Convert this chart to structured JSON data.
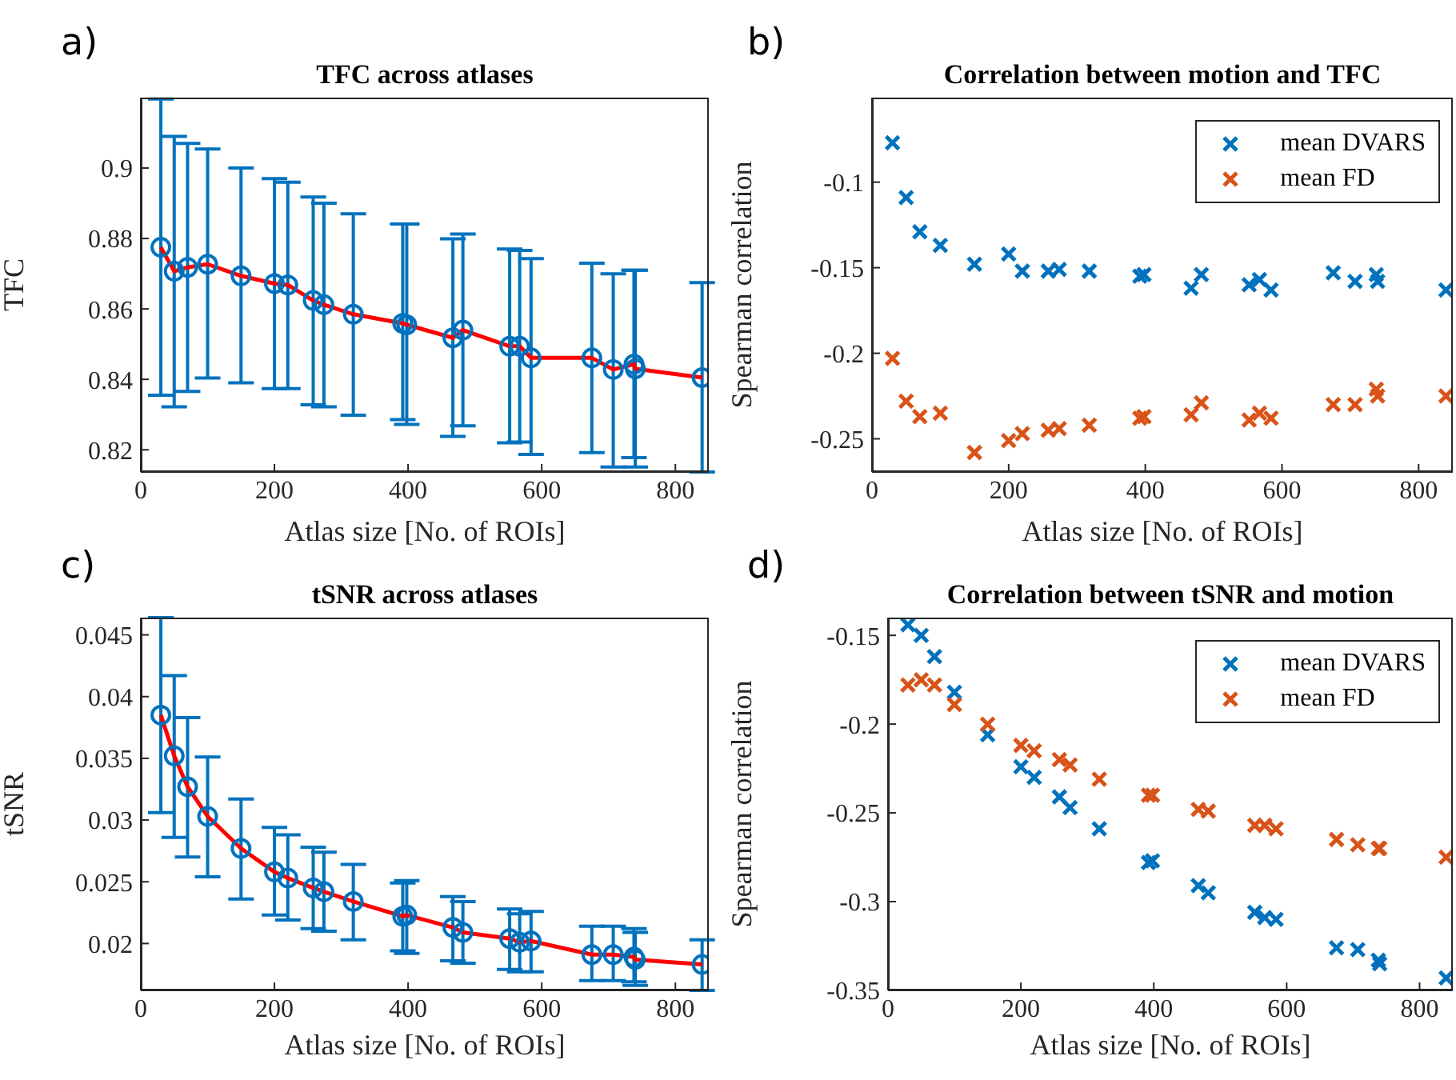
{
  "chart_data": [
    {
      "type": "scatter",
      "title": "TFC across atlases",
      "xlabel": "Atlas size [No. of ROIs]",
      "ylabel": "TFC",
      "annotations": [
        "a)"
      ],
      "legend": false,
      "grid": false,
      "x": [
        30,
        50,
        70,
        100,
        150,
        200,
        220,
        258,
        274,
        318,
        392,
        398,
        467,
        482,
        552,
        567,
        584,
        675,
        707,
        738,
        740,
        840
      ],
      "xlim": [
        0,
        850
      ],
      "xticks": [
        0,
        200,
        400,
        600,
        800
      ],
      "ylim": [
        0.8137,
        0.92
      ],
      "yticks": [
        0.82,
        0.84,
        0.86,
        0.88,
        0.9
      ],
      "series": [
        {
          "type": "scatter",
          "marker": "circle",
          "color": "#0072bd",
          "values": [
            0.8775,
            0.8707,
            0.8718,
            0.8727,
            0.8694,
            0.8672,
            0.8668,
            0.8624,
            0.8612,
            0.8585,
            0.8559,
            0.8555,
            0.8518,
            0.854,
            0.8494,
            0.8494,
            0.8461,
            0.8461,
            0.8428,
            0.8443,
            0.843,
            0.8405
          ],
          "errors": [
            [
              0.8355,
              0.9196
            ],
            [
              0.8322,
              0.909
            ],
            [
              0.8366,
              0.907
            ],
            [
              0.8404,
              0.9054
            ],
            [
              0.839,
              0.9
            ],
            [
              0.8374,
              0.897
            ],
            [
              0.8374,
              0.896
            ],
            [
              0.8328,
              0.8918
            ],
            [
              0.8322,
              0.89
            ],
            [
              0.8298,
              0.887
            ],
            [
              0.8286,
              0.8841
            ],
            [
              0.8272,
              0.8841
            ],
            [
              0.8238,
              0.8799
            ],
            [
              0.8268,
              0.8813
            ],
            [
              0.822,
              0.877
            ],
            [
              0.8222,
              0.8766
            ],
            [
              0.8187,
              0.8743
            ],
            [
              0.8192,
              0.873
            ],
            [
              0.8151,
              0.87
            ],
            [
              0.8178,
              0.871
            ],
            [
              0.8151,
              0.871
            ],
            [
              0.8137,
              0.8675
            ]
          ]
        },
        {
          "type": "line",
          "marker": "none",
          "color": "#ff0000",
          "values": [
            0.8775,
            0.8707,
            0.8718,
            0.8727,
            0.8694,
            0.8672,
            0.8668,
            0.8624,
            0.8612,
            0.8585,
            0.8559,
            0.8555,
            0.8518,
            0.854,
            0.8494,
            0.8494,
            0.8461,
            0.8461,
            0.8428,
            0.8443,
            0.843,
            0.8405
          ]
        }
      ]
    },
    {
      "type": "scatter",
      "title": "Correlation between motion and TFC",
      "xlabel": "Atlas size [No. of ROIs]",
      "ylabel": "Spearman correlation",
      "annotations": [
        "b)"
      ],
      "legend": "top right",
      "grid": false,
      "marker": "cross",
      "x": [
        30,
        50,
        70,
        100,
        150,
        200,
        220,
        258,
        274,
        318,
        392,
        398,
        467,
        482,
        552,
        567,
        584,
        675,
        707,
        738,
        740,
        840
      ],
      "xlim": [
        0,
        850
      ],
      "xticks": [
        0,
        200,
        400,
        600,
        800
      ],
      "ylim": [
        -0.2694,
        -0.0506
      ],
      "yticks": [
        -0.25,
        -0.2,
        -0.15,
        -0.1
      ],
      "series": [
        {
          "name": "mean DVARS",
          "color": "#0072bd",
          "values": [
            -0.077,
            -0.109,
            -0.129,
            -0.137,
            -0.148,
            -0.142,
            -0.152,
            -0.152,
            -0.151,
            -0.152,
            -0.155,
            -0.154,
            -0.162,
            -0.154,
            -0.16,
            -0.157,
            -0.163,
            -0.153,
            -0.158,
            -0.154,
            -0.158,
            -0.163
          ]
        },
        {
          "name": "mean FD",
          "color": "#d95319",
          "values": [
            -0.203,
            -0.228,
            -0.237,
            -0.235,
            -0.258,
            -0.251,
            -0.247,
            -0.245,
            -0.244,
            -0.242,
            -0.238,
            -0.237,
            -0.236,
            -0.229,
            -0.239,
            -0.235,
            -0.238,
            -0.23,
            -0.23,
            -0.221,
            -0.225,
            -0.225
          ]
        }
      ]
    },
    {
      "type": "scatter",
      "title": "tSNR across atlases",
      "xlabel": "Atlas size [No. of ROIs]",
      "ylabel": "tSNR",
      "annotations": [
        "c)"
      ],
      "legend": false,
      "grid": false,
      "x": [
        30,
        50,
        70,
        100,
        150,
        200,
        220,
        258,
        274,
        318,
        392,
        398,
        467,
        482,
        552,
        567,
        584,
        675,
        707,
        738,
        740,
        840
      ],
      "xlim": [
        0,
        850
      ],
      "xticks": [
        0,
        200,
        400,
        600,
        800
      ],
      "ylim": [
        0.0162,
        0.0464
      ],
      "yticks": [
        0.02,
        0.025,
        0.03,
        0.035,
        0.04,
        0.045
      ],
      "series": [
        {
          "type": "scatter",
          "marker": "circle",
          "color": "#0072bd",
          "values": [
            0.0385,
            0.0352,
            0.0327,
            0.0303,
            0.0277,
            0.0258,
            0.0253,
            0.0245,
            0.0242,
            0.0234,
            0.0222,
            0.0223,
            0.0213,
            0.0209,
            0.0204,
            0.0201,
            0.0202,
            0.0191,
            0.0191,
            0.0189,
            0.0187,
            0.0183
          ],
          "errors": [
            [
              0.0306,
              0.0464
            ],
            [
              0.0286,
              0.0417
            ],
            [
              0.027,
              0.0383
            ],
            [
              0.0254,
              0.0351
            ],
            [
              0.0236,
              0.0317
            ],
            [
              0.0223,
              0.0294
            ],
            [
              0.0219,
              0.0288
            ],
            [
              0.0212,
              0.0278
            ],
            [
              0.021,
              0.0274
            ],
            [
              0.0203,
              0.0264
            ],
            [
              0.0194,
              0.0249
            ],
            [
              0.0192,
              0.0251
            ],
            [
              0.0186,
              0.0238
            ],
            [
              0.0184,
              0.0234
            ],
            [
              0.0179,
              0.0228
            ],
            [
              0.0177,
              0.0224
            ],
            [
              0.0177,
              0.0226
            ],
            [
              0.017,
              0.0214
            ],
            [
              0.017,
              0.0214
            ],
            [
              0.0169,
              0.0212
            ],
            [
              0.0166,
              0.0209
            ],
            [
              0.0162,
              0.0203
            ]
          ]
        },
        {
          "type": "line",
          "marker": "none",
          "color": "#ff0000",
          "values": [
            0.0385,
            0.0352,
            0.0327,
            0.0303,
            0.0277,
            0.0258,
            0.0253,
            0.0245,
            0.0242,
            0.0234,
            0.0222,
            0.0223,
            0.0213,
            0.0209,
            0.0204,
            0.0201,
            0.0202,
            0.0191,
            0.0191,
            0.0189,
            0.0187,
            0.0183
          ]
        }
      ]
    },
    {
      "type": "scatter",
      "title": "Correlation between tSNR and motion",
      "xlabel": "Atlas size [No. of ROIs]",
      "ylabel": "Spearman correlation",
      "annotations": [
        "d)"
      ],
      "legend": "top right",
      "grid": false,
      "marker": "cross",
      "x": [
        30,
        50,
        70,
        100,
        150,
        200,
        220,
        258,
        274,
        318,
        392,
        398,
        467,
        482,
        552,
        567,
        584,
        675,
        707,
        738,
        740,
        840
      ],
      "xlim": [
        0,
        850
      ],
      "xticks": [
        0,
        200,
        400,
        600,
        800
      ],
      "ylim": [
        -0.35,
        -0.14
      ],
      "yticks": [
        -0.35,
        -0.3,
        -0.25,
        -0.2,
        -0.15
      ],
      "series": [
        {
          "name": "mean DVARS",
          "color": "#0072bd",
          "values": [
            -0.144,
            -0.15,
            -0.162,
            -0.182,
            -0.206,
            -0.224,
            -0.23,
            -0.241,
            -0.247,
            -0.259,
            -0.278,
            -0.277,
            -0.291,
            -0.295,
            -0.306,
            -0.309,
            -0.31,
            -0.326,
            -0.327,
            -0.333,
            -0.335,
            -0.343
          ]
        },
        {
          "name": "mean FD",
          "color": "#d95319",
          "values": [
            -0.178,
            -0.175,
            -0.178,
            -0.189,
            -0.2,
            -0.212,
            -0.215,
            -0.22,
            -0.223,
            -0.231,
            -0.24,
            -0.24,
            -0.248,
            -0.249,
            -0.257,
            -0.257,
            -0.259,
            -0.265,
            -0.268,
            -0.27,
            -0.27,
            -0.275
          ]
        }
      ]
    }
  ]
}
